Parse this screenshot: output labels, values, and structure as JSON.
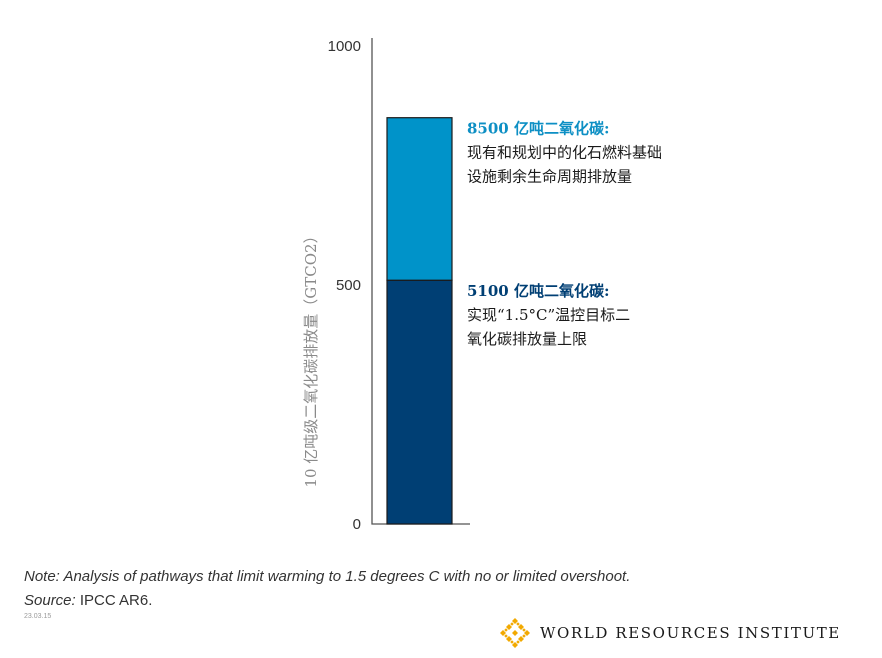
{
  "chart_data": {
    "type": "bar",
    "stacked": true,
    "ylabel": "10 亿吨级二氧化碳排放量（GTCO2）",
    "ylim": [
      0,
      1000
    ],
    "yticks": [
      0,
      500,
      1000
    ],
    "ytick_labels": [
      "0",
      "500",
      "1000"
    ],
    "grid": false,
    "legend": "none",
    "segments": [
      {
        "value": 510,
        "color": "#003f74",
        "annotation": {
          "head": "5100 亿吨二氧化碳:",
          "head_color": "#003f74",
          "lines": [
            "实现“1.5°C”温控目标二",
            "氧化碳排放量上限"
          ]
        }
      },
      {
        "value": 340,
        "color": "#0093c9",
        "annotation": {
          "head": "8500 亿吨二氧化碳:",
          "head_color": "#0d8fc4",
          "lines": [
            "现有和规划中的化石燃料基础",
            "设施剩余生命周期排放量"
          ]
        }
      }
    ]
  },
  "footer": {
    "note": "Note: Analysis of pathways that limit warming to 1.5 degrees C with no or limited overshoot.",
    "source_label": "Source:",
    "source_value": "IPCC AR6.",
    "date_code": "23.03.15",
    "logo_text": "WORLD RESOURCES INSTITUTE",
    "logo_color": "#f2a900"
  }
}
